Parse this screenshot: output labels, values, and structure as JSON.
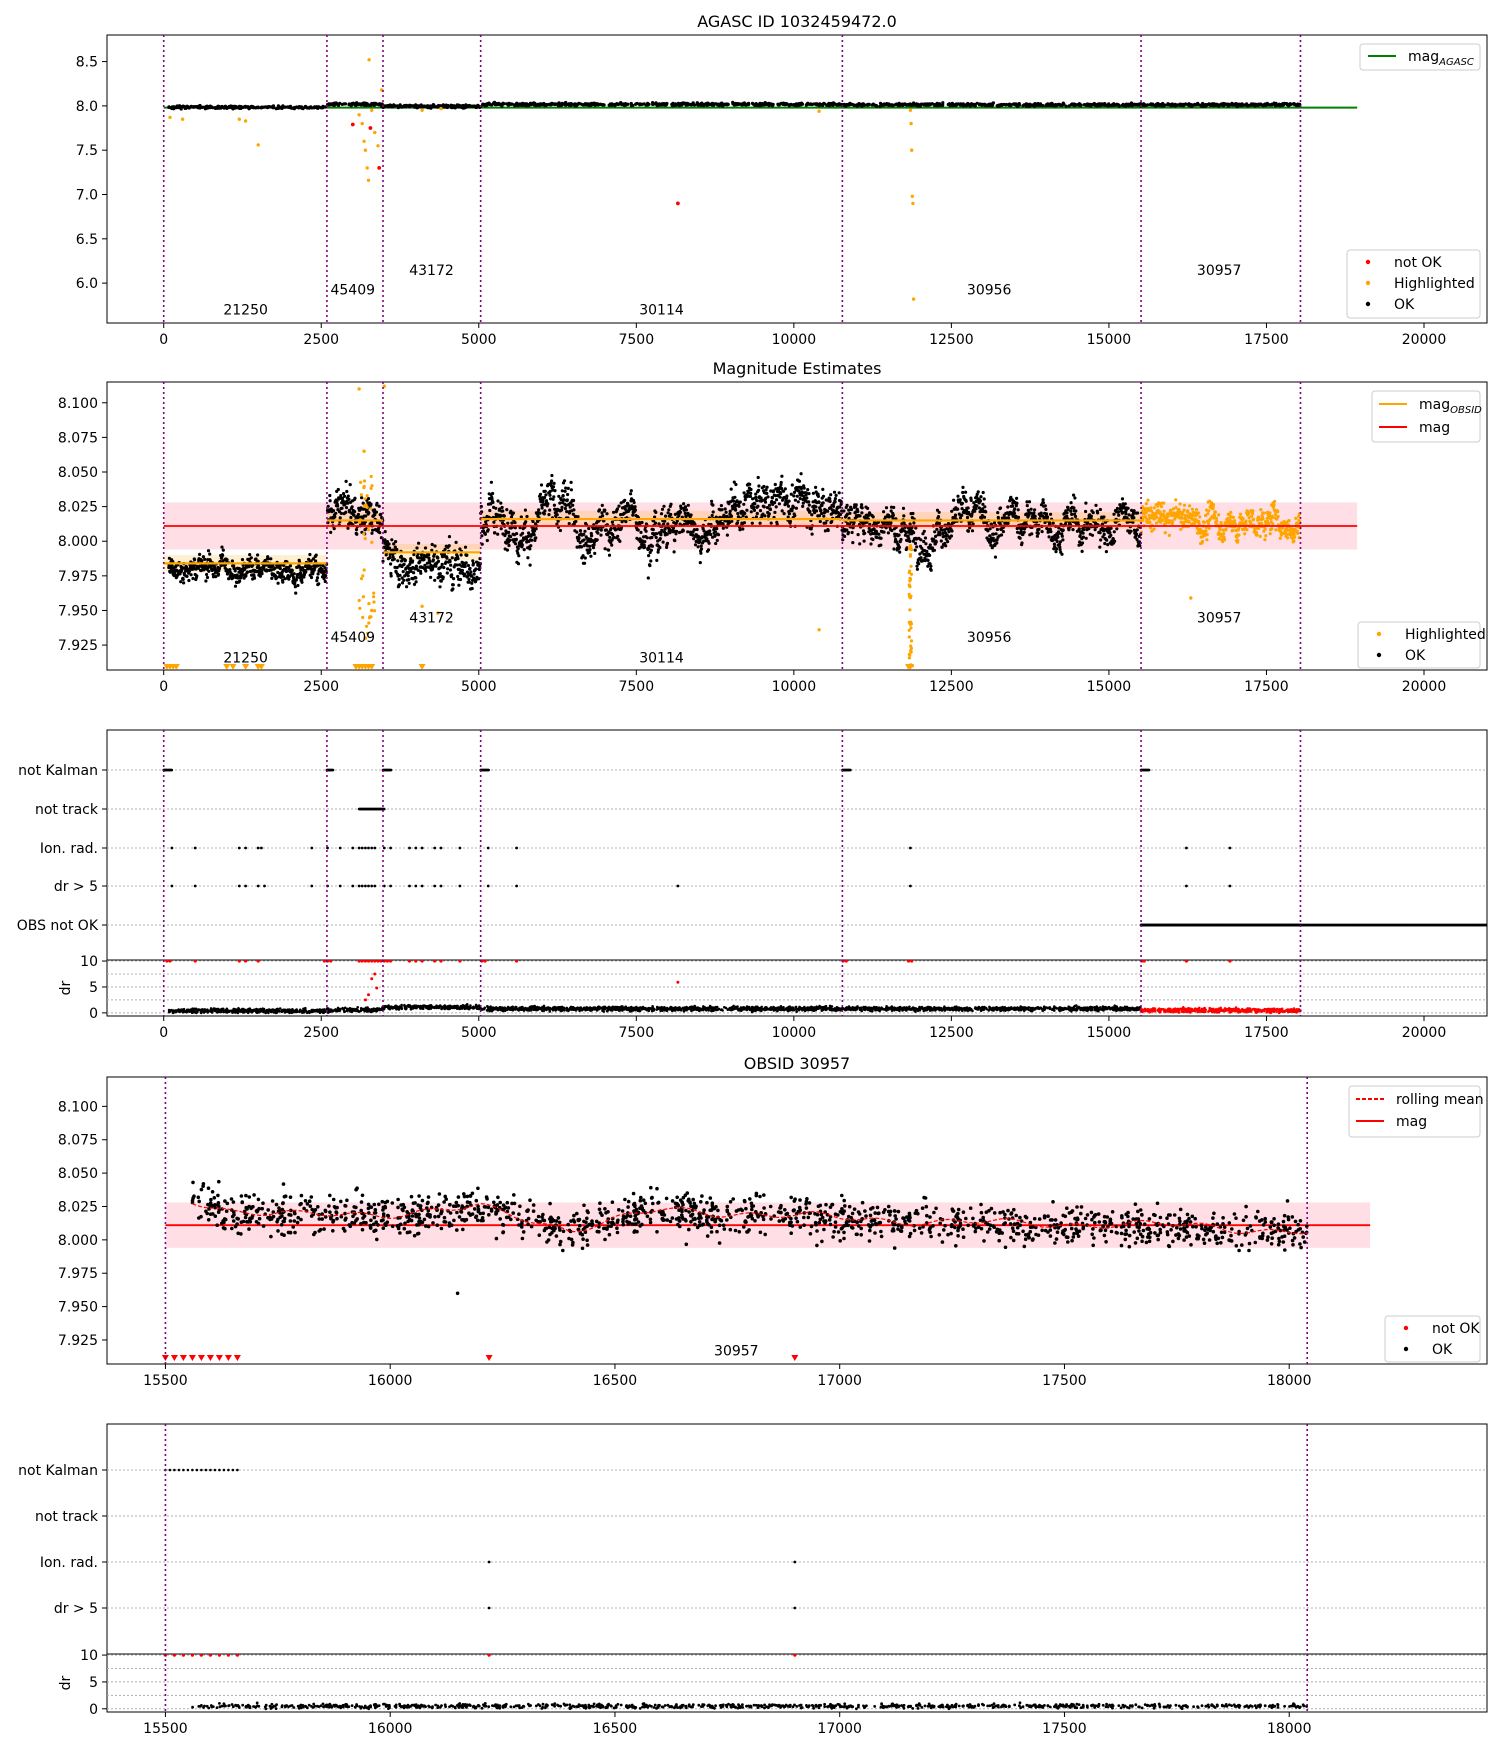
{
  "colors": {
    "ok": "#000000",
    "not_ok": "#ff0000",
    "highlighted": "#ffa500",
    "mag_agasc": "#008000",
    "mag_line": "#ff0000",
    "mag_band": "#ffc0cb",
    "mag_obsid": "#ffa500",
    "boundary": "#800080",
    "grid": "#b0b0b0"
  },
  "chart_data": [
    {
      "id": "agasc",
      "type": "scatter",
      "title": "AGASC ID 1032459472.0",
      "xlim": [
        -900,
        21000
      ],
      "ylim": [
        5.55,
        8.8
      ],
      "xticks": [
        0,
        2500,
        5000,
        7500,
        10000,
        12500,
        15000,
        17500,
        20000
      ],
      "xtick_labels": [
        "0",
        "2500",
        "5000",
        "7500",
        "10000",
        "12500",
        "15000",
        "17500",
        "20000"
      ],
      "yticks": [
        6.0,
        6.5,
        7.0,
        7.5,
        8.0,
        8.5
      ],
      "ytick_labels": [
        "6.0",
        "6.5",
        "7.0",
        "7.5",
        "8.0",
        "8.5"
      ],
      "obsid_boundaries": [
        0,
        2590,
        3480,
        5030,
        10770,
        15510,
        18040
      ],
      "obsid_labels": [
        {
          "text": "21250",
          "x": 1300,
          "y": 5.7
        },
        {
          "text": "45409",
          "x": 3000,
          "y": 5.93
        },
        {
          "text": "43172",
          "x": 4250,
          "y": 6.15
        },
        {
          "text": "30114",
          "x": 7900,
          "y": 5.7
        },
        {
          "text": "30956",
          "x": 13100,
          "y": 5.93
        },
        {
          "text": "30957",
          "x": 16750,
          "y": 6.15
        }
      ],
      "mag_agasc": 7.98,
      "legend_upper": {
        "position": "top-right",
        "entries": [
          "mag_AGASC"
        ]
      },
      "legend_lower": {
        "position": "bottom-right",
        "entries": [
          "not OK",
          "Highlighted",
          "OK"
        ]
      },
      "series": [
        {
          "name": "OK",
          "description": "dense band near 8.0 from 80 to 18040"
        },
        {
          "name": "Highlighted",
          "points": [
            [
              100,
              7.87
            ],
            [
              300,
              7.85
            ],
            [
              1200,
              7.85
            ],
            [
              1300,
              7.83
            ],
            [
              1500,
              7.56
            ],
            [
              3100,
              7.9
            ],
            [
              3150,
              7.8
            ],
            [
              3180,
              7.6
            ],
            [
              3200,
              7.5
            ],
            [
              3230,
              7.3
            ],
            [
              3250,
              7.16
            ],
            [
              3260,
              8.52
            ],
            [
              3300,
              7.95
            ],
            [
              3350,
              7.7
            ],
            [
              3400,
              7.55
            ],
            [
              3460,
              8.18
            ],
            [
              4100,
              7.95
            ],
            [
              4400,
              7.97
            ],
            [
              10400,
              7.94
            ],
            [
              11850,
              7.95
            ],
            [
              11860,
              7.8
            ],
            [
              11870,
              7.5
            ],
            [
              11880,
              6.98
            ],
            [
              11890,
              6.9
            ],
            [
              11900,
              5.82
            ]
          ]
        },
        {
          "name": "not OK",
          "points": [
            [
              3000,
              7.79
            ],
            [
              3280,
              7.75
            ],
            [
              3420,
              7.3
            ],
            [
              8160,
              6.9
            ]
          ]
        }
      ]
    },
    {
      "id": "mag_estimates",
      "type": "scatter",
      "title": "Magnitude Estimates",
      "xlim": [
        -900,
        21000
      ],
      "ylim": [
        7.907,
        8.115
      ],
      "xticks": [
        0,
        2500,
        5000,
        7500,
        10000,
        12500,
        15000,
        17500,
        20000
      ],
      "xtick_labels": [
        "0",
        "2500",
        "5000",
        "7500",
        "10000",
        "12500",
        "15000",
        "17500",
        "20000"
      ],
      "yticks": [
        7.925,
        7.95,
        7.975,
        8.0,
        8.025,
        8.05,
        8.075,
        8.1
      ],
      "ytick_labels": [
        "7.925",
        "7.950",
        "7.975",
        "8.000",
        "8.025",
        "8.050",
        "8.075",
        "8.100"
      ],
      "obsid_boundaries": [
        0,
        2590,
        3480,
        5030,
        10770,
        15510,
        18040
      ],
      "obsid_labels": [
        {
          "text": "21250",
          "x": 1300,
          "y": 7.916
        },
        {
          "text": "45409",
          "x": 3000,
          "y": 7.931
        },
        {
          "text": "43172",
          "x": 4250,
          "y": 7.945
        },
        {
          "text": "30114",
          "x": 7900,
          "y": 7.916
        },
        {
          "text": "30956",
          "x": 13100,
          "y": 7.931
        },
        {
          "text": "30957",
          "x": 16750,
          "y": 7.945
        }
      ],
      "mag": 8.011,
      "mag_band": [
        7.994,
        8.028
      ],
      "mag_obsid_segments": [
        {
          "x": [
            0,
            2590
          ],
          "y": 7.984
        },
        {
          "x": [
            2590,
            3480
          ],
          "y": 8.015
        },
        {
          "x": [
            3480,
            5030
          ],
          "y": 7.992
        },
        {
          "x": [
            5030,
            10770
          ],
          "y": 8.016
        },
        {
          "x": [
            10770,
            15510
          ],
          "y": 8.015
        }
      ],
      "segments": [
        {
          "x": [
            80,
            2590
          ],
          "center": 7.984,
          "spread": 0.006,
          "color": "ok"
        },
        {
          "x": [
            2600,
            3480
          ],
          "center": 8.02,
          "spread": 0.009,
          "color": "ok"
        },
        {
          "x": [
            3480,
            5030
          ],
          "center": 7.99,
          "spread": 0.01,
          "color": "ok"
        },
        {
          "x": [
            5030,
            10770
          ],
          "center": 8.016,
          "spread": 0.01,
          "color": "ok"
        },
        {
          "x": [
            10770,
            15510
          ],
          "center": 8.012,
          "spread": 0.009,
          "color": "ok"
        },
        {
          "x": [
            15510,
            18040
          ],
          "center": 8.014,
          "spread": 0.007,
          "color": "highlighted"
        }
      ],
      "legend_upper": {
        "position": "top-right",
        "entries": [
          "mag_OBSID",
          "mag"
        ]
      },
      "legend_lower": {
        "position": "bottom-right",
        "entries": [
          "Highlighted",
          "OK"
        ]
      },
      "highlight_points": [
        [
          3100,
          8.11
        ],
        [
          3180,
          8.065
        ],
        [
          3200,
          7.93
        ],
        [
          3300,
          7.95
        ],
        [
          3250,
          7.91
        ],
        [
          3500,
          8.112
        ],
        [
          4100,
          7.953
        ],
        [
          4350,
          7.948
        ],
        [
          10400,
          7.936
        ],
        [
          11850,
          7.94
        ],
        [
          11860,
          7.92
        ],
        [
          11880,
          7.91
        ],
        [
          16300,
          7.959
        ]
      ],
      "clipped_markers_x": [
        50,
        100,
        150,
        200,
        1000,
        1100,
        1300,
        1500,
        1550,
        3050,
        3100,
        3150,
        3200,
        3250,
        3300,
        4100,
        11820,
        11850
      ]
    },
    {
      "id": "flags_all",
      "type": "scatter",
      "xlim": [
        -900,
        21000
      ],
      "categories": [
        "not Kalman",
        "not track",
        "Ion. rad.",
        "dr > 5",
        "OBS not OK"
      ],
      "obsid_boundaries": [
        0,
        2590,
        3480,
        5030,
        10770,
        15510,
        18040
      ],
      "flag_points": {
        "not Kalman": [
          [
            0,
            130
          ],
          [
            2590,
            100
          ],
          [
            3480,
            130
          ],
          [
            5030,
            130
          ],
          [
            10770,
            130
          ],
          [
            15510,
            130
          ]
        ],
        "not track": [
          [
            3100,
            400
          ]
        ],
        "Ion. rad.": [
          130,
          500,
          1200,
          1300,
          1500,
          1550,
          2350,
          2600,
          2800,
          3000,
          3100,
          3150,
          3200,
          3250,
          3300,
          3350,
          3500,
          3600,
          3900,
          4000,
          4100,
          4300,
          4400,
          4700,
          5150,
          5600,
          11850,
          16230,
          16920
        ],
        "dr > 5": [
          130,
          500,
          1200,
          1300,
          1500,
          1600,
          2350,
          2600,
          2800,
          3000,
          3100,
          3150,
          3200,
          3250,
          3300,
          3350,
          3500,
          3600,
          3900,
          4000,
          4100,
          4300,
          4400,
          4700,
          5150,
          5600,
          8160,
          11850,
          16230,
          16920
        ],
        "OBS not OK": [
          [
            15510,
            18040
          ]
        ]
      }
    },
    {
      "id": "dr_all",
      "type": "scatter",
      "xlim": [
        -900,
        21000
      ],
      "ylim": [
        -0.6,
        10.2
      ],
      "ylabel": "dr",
      "yticks": [
        0,
        5,
        10
      ],
      "ytick_labels": [
        "0",
        "5",
        "10"
      ],
      "xticks": [
        0,
        2500,
        5000,
        7500,
        10000,
        12500,
        15000,
        17500,
        20000
      ],
      "xtick_labels": [
        "0",
        "2500",
        "5000",
        "7500",
        "10000",
        "12500",
        "15000",
        "17500",
        "20000"
      ],
      "baseline_segments": [
        {
          "x": [
            80,
            2590
          ],
          "level": 0.4,
          "color": "ok"
        },
        {
          "x": [
            2590,
            3480
          ],
          "level": 0.6,
          "color": "ok"
        },
        {
          "x": [
            3480,
            5030
          ],
          "level": 1.1,
          "color": "ok"
        },
        {
          "x": [
            5030,
            15510
          ],
          "level": 0.8,
          "color": "ok"
        },
        {
          "x": [
            15510,
            18040
          ],
          "level": 0.5,
          "color": "not_ok"
        }
      ],
      "red_points": [
        [
          3200,
          2.5
        ],
        [
          3250,
          3.5
        ],
        [
          3300,
          6.6
        ],
        [
          3350,
          7.5
        ],
        [
          3380,
          4.8
        ],
        [
          8160,
          5.9
        ]
      ],
      "red_at_10_x": [
        50,
        100,
        500,
        1200,
        1300,
        1500,
        2550,
        2600,
        2650,
        3100,
        3150,
        3200,
        3250,
        3300,
        3350,
        3400,
        3450,
        3500,
        3550,
        3600,
        3900,
        4000,
        4100,
        4300,
        4400,
        4700,
        5050,
        5100,
        5600,
        10780,
        10830,
        11820,
        11870,
        15520,
        15560,
        16230,
        16920
      ]
    },
    {
      "id": "obsid",
      "type": "scatter",
      "title": "OBSID 30957",
      "xlim": [
        15370,
        18440
      ],
      "ylim": [
        7.907,
        8.122
      ],
      "xticks": [
        15500,
        16000,
        16500,
        17000,
        17500,
        18000
      ],
      "xtick_labels": [
        "15500",
        "16000",
        "16500",
        "17000",
        "17500",
        "18000"
      ],
      "yticks": [
        7.925,
        7.95,
        7.975,
        8.0,
        8.025,
        8.05,
        8.075,
        8.1
      ],
      "ytick_labels": [
        "7.925",
        "7.950",
        "7.975",
        "8.000",
        "8.025",
        "8.050",
        "8.075",
        "8.100"
      ],
      "obsid_boundaries": [
        15500,
        18040
      ],
      "obsid_labels": [
        {
          "text": "30957",
          "x": 16770,
          "y": 7.917
        }
      ],
      "mag": 8.011,
      "mag_band": [
        7.994,
        8.028
      ],
      "rolling_mean": {
        "x": [
          15560,
          15650,
          15800,
          16000,
          16200,
          16400,
          16600,
          16800,
          17000,
          17200,
          17400,
          17600,
          17800,
          18040
        ],
        "y": [
          8.03,
          8.022,
          8.018,
          8.02,
          8.024,
          8.008,
          8.022,
          8.02,
          8.016,
          8.014,
          8.012,
          8.012,
          8.01,
          8.006
        ]
      },
      "ok_points": {
        "x": [
          15560,
          18040
        ],
        "description": "dense scatter following rolling mean, std ~0.008"
      },
      "ok_outliers": [
        [
          16150,
          7.96
        ]
      ],
      "not_ok_clipped_x": [
        15500,
        15520,
        15540,
        15560,
        15580,
        15600,
        15620,
        15640,
        15660,
        16220,
        16900
      ],
      "legend_upper": {
        "position": "top-right",
        "entries": [
          "rolling mean",
          "mag"
        ]
      },
      "legend_lower": {
        "position": "bottom-right",
        "entries": [
          "not OK",
          "OK"
        ]
      }
    },
    {
      "id": "flags_obsid",
      "type": "scatter",
      "xlim": [
        15370,
        18440
      ],
      "categories": [
        "not Kalman",
        "not track",
        "Ion. rad.",
        "dr > 5"
      ],
      "obsid_boundaries": [
        15500,
        18040
      ],
      "flag_points": {
        "not Kalman": [
          [
            15500,
            15665
          ]
        ],
        "not track": [],
        "Ion. rad.": [
          16220,
          16900
        ],
        "dr > 5": [
          16220,
          16900
        ]
      }
    },
    {
      "id": "dr_obsid",
      "type": "scatter",
      "xlim": [
        15370,
        18440
      ],
      "ylim": [
        -0.6,
        10.2
      ],
      "ylabel": "dr",
      "yticks": [
        0,
        5,
        10
      ],
      "ytick_labels": [
        "0",
        "5",
        "10"
      ],
      "xticks": [
        15500,
        16000,
        16500,
        17000,
        17500,
        18000
      ],
      "xtick_labels": [
        "15500",
        "16000",
        "16500",
        "17000",
        "17500",
        "18000"
      ],
      "baseline": {
        "x": [
          15560,
          18040
        ],
        "level": 0.5
      },
      "red_at_10_x": [
        15500,
        15520,
        15540,
        15560,
        15580,
        15600,
        15620,
        15640,
        15660,
        16220,
        16900
      ]
    }
  ]
}
